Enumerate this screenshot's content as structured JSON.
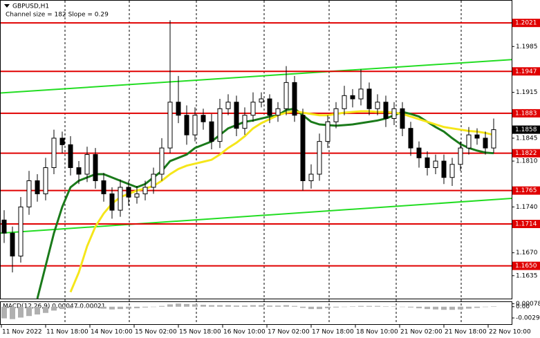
{
  "chart_data": {
    "type": "candlestick",
    "title": "GBPUSD,H1",
    "subtitle": "Channel size = 182 Slope = 0.29",
    "x_labels": [
      "11 Nov 2022",
      "11 Nov 18:00",
      "14 Nov 10:00",
      "15 Nov 02:00",
      "15 Nov 18:00",
      "16 Nov 10:00",
      "17 Nov 02:00",
      "17 Nov 18:00",
      "18 Nov 10:00",
      "21 Nov 02:00",
      "21 Nov 18:00",
      "22 Nov 10:00"
    ],
    "ylim": [
      1.2056,
      1.16
    ],
    "yticks": [
      1.1985,
      1.1915,
      1.1845,
      {
        "value": 1.181,
        "label": "1.1810"
      },
      {
        "value": 1.174,
        "label": "1.1740"
      },
      {
        "value": 1.167,
        "label": "1.1670"
      },
      1.1635
    ],
    "levels": [
      1.2021,
      1.1947,
      1.1883,
      1.1822,
      1.1765,
      1.1714,
      {
        "value": 1.165,
        "label": "1.1650"
      }
    ],
    "level_color": "#e00000",
    "price": 1.1858,
    "channel": {
      "color": "#22dd22",
      "upper": [
        1.1914,
        1.1965
      ],
      "lower": [
        1.17,
        1.1753
      ]
    },
    "candles": {
      "open": [
        1.172,
        1.17,
        1.1665,
        1.174,
        1.178,
        1.176,
        1.18,
        1.1845,
        1.1835,
        1.18,
        1.179,
        1.182,
        1.178,
        1.176,
        1.1735,
        1.177,
        1.1755,
        1.176,
        1.177,
        1.179,
        1.183,
        1.19,
        1.188,
        1.185,
        1.188,
        1.187,
        1.184,
        1.189,
        1.19,
        1.186,
        1.188,
        1.19,
        1.1905,
        1.188,
        1.189,
        1.193,
        1.188,
        1.178,
        1.179,
        1.184,
        1.187,
        1.189,
        1.191,
        1.1905,
        1.192,
        1.189,
        1.19,
        1.1875,
        1.189,
        1.186,
        1.183,
        1.1815,
        1.18,
        1.181,
        1.1785,
        1.1805,
        1.183,
        1.185,
        1.1845,
        1.183
      ],
      "high": [
        1.1735,
        1.171,
        1.1755,
        1.1795,
        1.179,
        1.1815,
        1.1858,
        1.1855,
        1.1848,
        1.181,
        1.1832,
        1.183,
        1.1792,
        1.177,
        1.1782,
        1.178,
        1.1772,
        1.178,
        1.18,
        1.1845,
        1.2025,
        1.194,
        1.1895,
        1.1892,
        1.189,
        1.1882,
        1.1905,
        1.1912,
        1.191,
        1.1892,
        1.1915,
        1.1915,
        1.1912,
        1.19,
        1.1955,
        1.194,
        1.189,
        1.1805,
        1.1852,
        1.188,
        1.19,
        1.1925,
        1.192,
        1.195,
        1.193,
        1.1912,
        1.191,
        1.19,
        1.19,
        1.187,
        1.184,
        1.1825,
        1.182,
        1.182,
        1.1815,
        1.184,
        1.1862,
        1.186,
        1.1855,
        1.1875
      ],
      "low": [
        1.1685,
        1.164,
        1.1655,
        1.1728,
        1.1748,
        1.175,
        1.179,
        1.1822,
        1.1788,
        1.1775,
        1.1778,
        1.1768,
        1.1748,
        1.1722,
        1.1725,
        1.1742,
        1.1745,
        1.175,
        1.176,
        1.178,
        1.1822,
        1.1868,
        1.1835,
        1.184,
        1.1858,
        1.1828,
        1.183,
        1.188,
        1.1848,
        1.185,
        1.187,
        1.1892,
        1.1868,
        1.187,
        1.188,
        1.187,
        1.1765,
        1.1768,
        1.178,
        1.183,
        1.186,
        1.188,
        1.1892,
        1.1895,
        1.188,
        1.188,
        1.1862,
        1.1865,
        1.1848,
        1.1818,
        1.18,
        1.1788,
        1.179,
        1.1775,
        1.1772,
        1.1795,
        1.182,
        1.1835,
        1.182,
        1.1822
      ],
      "close": [
        1.17,
        1.1665,
        1.174,
        1.178,
        1.176,
        1.18,
        1.1845,
        1.1835,
        1.18,
        1.179,
        1.182,
        1.178,
        1.176,
        1.1735,
        1.177,
        1.1755,
        1.176,
        1.177,
        1.179,
        1.183,
        1.19,
        1.188,
        1.185,
        1.188,
        1.187,
        1.184,
        1.189,
        1.19,
        1.186,
        1.188,
        1.19,
        1.1905,
        1.188,
        1.189,
        1.193,
        1.188,
        1.178,
        1.179,
        1.184,
        1.187,
        1.189,
        1.191,
        1.1905,
        1.192,
        1.189,
        1.19,
        1.1875,
        1.189,
        1.186,
        1.183,
        1.1815,
        1.18,
        1.181,
        1.1785,
        1.1805,
        1.183,
        1.185,
        1.1845,
        1.183,
        1.1858
      ]
    },
    "series": [
      {
        "color": "#1a7a1a",
        "values": [
          null,
          null,
          null,
          null,
          1.16,
          1.165,
          1.17,
          1.174,
          1.177,
          1.178,
          1.1785,
          1.179,
          1.179,
          1.1785,
          1.178,
          1.1775,
          1.177,
          1.1775,
          1.1785,
          1.1795,
          1.181,
          1.1815,
          1.182,
          1.183,
          1.1835,
          1.184,
          1.185,
          1.186,
          1.1865,
          1.187,
          1.1872,
          1.1875,
          1.1878,
          1.188,
          1.1888,
          1.189,
          1.188,
          1.187,
          1.1866,
          1.1865,
          1.1864,
          1.1865,
          1.1866,
          1.1868,
          1.187,
          1.1872,
          1.1875,
          1.188,
          1.1885,
          1.1882,
          1.1878,
          1.187,
          1.1862,
          1.1855,
          1.1845,
          1.1836,
          1.183,
          1.1826,
          1.1823,
          1.1822
        ]
      },
      {
        "color": "#f5e61a",
        "values": [
          null,
          null,
          null,
          null,
          null,
          null,
          null,
          null,
          1.161,
          1.164,
          1.168,
          1.171,
          1.173,
          1.1745,
          1.1755,
          1.176,
          1.1765,
          1.1768,
          1.1772,
          1.178,
          1.179,
          1.1798,
          1.1803,
          1.1806,
          1.1809,
          1.1812,
          1.182,
          1.183,
          1.1838,
          1.1848,
          1.186,
          1.1868,
          1.1874,
          1.188,
          1.1884,
          1.1886,
          1.1884,
          1.1882,
          1.188,
          1.188,
          1.1882,
          1.1884,
          1.1885,
          1.1886,
          1.1886,
          1.1885,
          1.1885,
          1.1884,
          1.1882,
          1.1878,
          1.1874,
          1.187,
          1.1866,
          1.1862,
          1.186,
          1.1858,
          1.1856,
          1.1855,
          1.1853,
          1.185
        ]
      }
    ],
    "macd": {
      "label": "MACD(12,26,9) 0.00047 0.00021",
      "ylim": [
        -0.0045,
        0.0012
      ],
      "yticks": [
        0.00078,
        {
          "value": 0,
          "label": "0.00"
        },
        -0.0029
      ],
      "values": [
        -0.003,
        -0.0032,
        -0.0028,
        -0.0024,
        -0.002,
        -0.0016,
        -0.001,
        -0.0006,
        -0.0004,
        -0.0003,
        -0.0002,
        -0.0003,
        -0.0005,
        -0.0007,
        -0.0006,
        -0.0005,
        -0.0004,
        -0.0002,
        0.0,
        0.0002,
        0.0006,
        0.0008,
        0.0007,
        0.0006,
        0.0005,
        0.0004,
        0.0004,
        0.0004,
        0.0003,
        0.0003,
        0.0004,
        0.0004,
        0.0003,
        0.0003,
        0.0004,
        0.0002,
        -0.0003,
        -0.0006,
        -0.0006,
        -0.0004,
        -0.0002,
        0.0,
        0.0001,
        0.0002,
        0.0002,
        0.0002,
        0.0001,
        0.0001,
        0.0,
        -0.0002,
        -0.0004,
        -0.0006,
        -0.0007,
        -0.0008,
        -0.0008,
        -0.0007,
        -0.0005,
        -0.0003,
        -0.0001,
        0.0001
      ]
    }
  }
}
